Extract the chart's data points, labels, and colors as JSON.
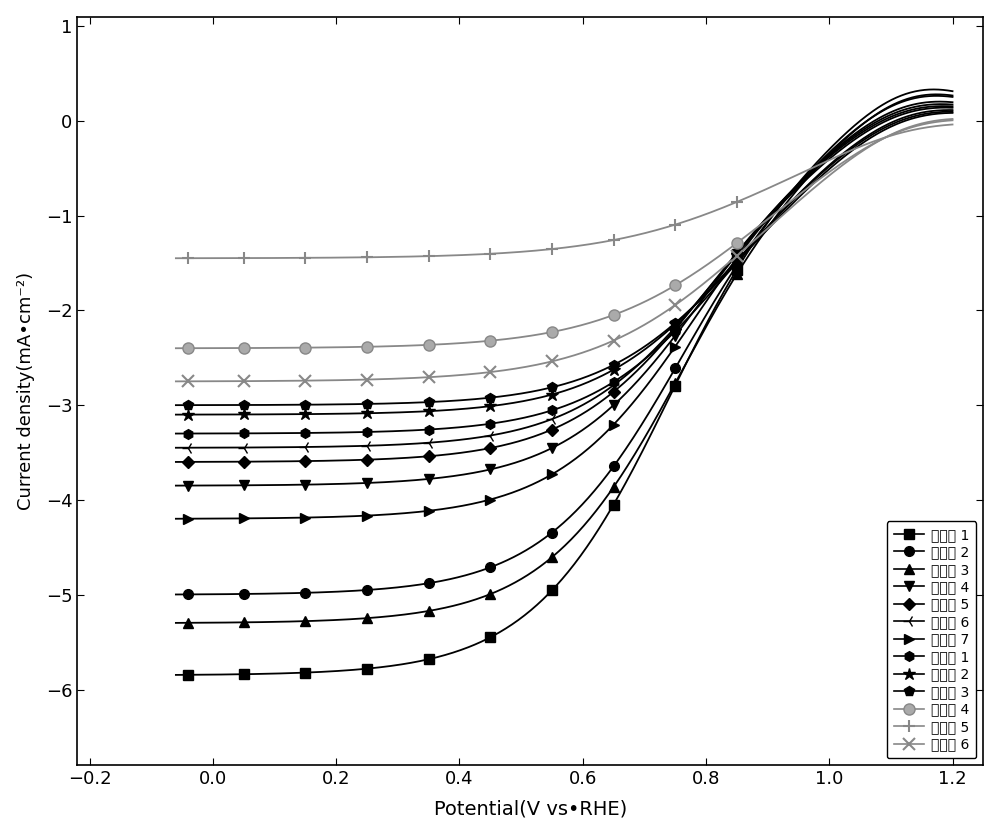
{
  "xlim": [
    -0.22,
    1.25
  ],
  "ylim": [
    -6.8,
    1.1
  ],
  "xticks": [
    -0.2,
    0.0,
    0.2,
    0.4,
    0.6,
    0.8,
    1.0,
    1.2
  ],
  "yticks": [
    -6,
    -5,
    -4,
    -3,
    -2,
    -1,
    0,
    1
  ],
  "xlabel": "Potential(V vs•RHE)",
  "ylabel": "Current density(mA•cm⁻²)",
  "curves": [
    {
      "label": "实施例 1",
      "marker": "s",
      "lc": -5.85,
      "hw": 0.74,
      "st": 9.0,
      "color": "black",
      "mfc": "black",
      "ms": 7
    },
    {
      "label": "实施例 2",
      "marker": "o",
      "lc": -5.0,
      "hw": 0.76,
      "st": 9.0,
      "color": "black",
      "mfc": "black",
      "ms": 7
    },
    {
      "label": "实施例 3",
      "marker": "^",
      "lc": -5.3,
      "hw": 0.76,
      "st": 9.0,
      "color": "black",
      "mfc": "black",
      "ms": 7
    },
    {
      "label": "实施例 4",
      "marker": "v",
      "lc": -3.85,
      "hw": 0.79,
      "st": 9.0,
      "color": "black",
      "mfc": "black",
      "ms": 7
    },
    {
      "label": "实施例 5",
      "marker": "D",
      "lc": -3.6,
      "hw": 0.8,
      "st": 9.0,
      "color": "black",
      "mfc": "black",
      "ms": 6
    },
    {
      "label": "实施例 6",
      "marker": "3",
      "lc": -3.45,
      "hw": 0.81,
      "st": 9.0,
      "color": "black",
      "mfc": "black",
      "ms": 9
    },
    {
      "label": "实施例 7",
      "marker": ">",
      "lc": -4.2,
      "hw": 0.78,
      "st": 9.0,
      "color": "black",
      "mfc": "black",
      "ms": 7
    },
    {
      "label": "对比例 1",
      "marker": "h",
      "lc": -3.3,
      "hw": 0.83,
      "st": 9.0,
      "color": "black",
      "mfc": "black",
      "ms": 7
    },
    {
      "label": "对比例 2",
      "marker": "*",
      "lc": -3.1,
      "hw": 0.84,
      "st": 9.0,
      "color": "black",
      "mfc": "black",
      "ms": 9
    },
    {
      "label": "对比例 3",
      "marker": "p",
      "lc": -3.0,
      "hw": 0.85,
      "st": 9.0,
      "color": "black",
      "mfc": "black",
      "ms": 7
    },
    {
      "label": "对比例 4",
      "marker": "o",
      "lc": -2.4,
      "hw": 0.87,
      "st": 8.0,
      "color": "#888888",
      "mfc": "#aaaaaa",
      "ms": 8
    },
    {
      "label": "对比例 5",
      "marker": "+",
      "lc": -1.45,
      "hw": 0.9,
      "st": 7.5,
      "color": "#888888",
      "mfc": "none",
      "ms": 9
    },
    {
      "label": "对比例 6",
      "marker": "x",
      "lc": -2.75,
      "hw": 0.86,
      "st": 8.0,
      "color": "#888888",
      "mfc": "none",
      "ms": 8
    }
  ]
}
